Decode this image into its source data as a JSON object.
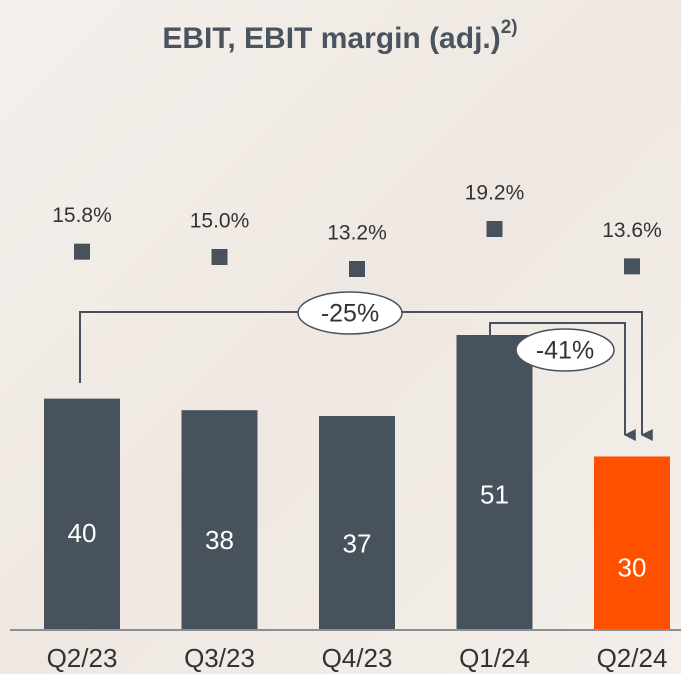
{
  "chart_data": {
    "type": "bar",
    "title": "EBIT, EBIT margin (adj.)",
    "title_note": "2)",
    "categories": [
      "Q2/23",
      "Q3/23",
      "Q4/23",
      "Q1/24",
      "Q2/24"
    ],
    "series": [
      {
        "name": "EBIT",
        "values": [
          40,
          38,
          37,
          51,
          30
        ],
        "colors": [
          "#47525c",
          "#47525c",
          "#47525c",
          "#47525c",
          "#ff5000"
        ]
      },
      {
        "name": "EBIT margin",
        "values": [
          15.8,
          15.0,
          13.2,
          19.2,
          13.6
        ],
        "value_labels": [
          "15.8%",
          "15.0%",
          "13.2%",
          "19.2%",
          "13.6%"
        ],
        "color": "#47525c"
      }
    ],
    "annotations": [
      "-25%",
      "-41%"
    ]
  }
}
